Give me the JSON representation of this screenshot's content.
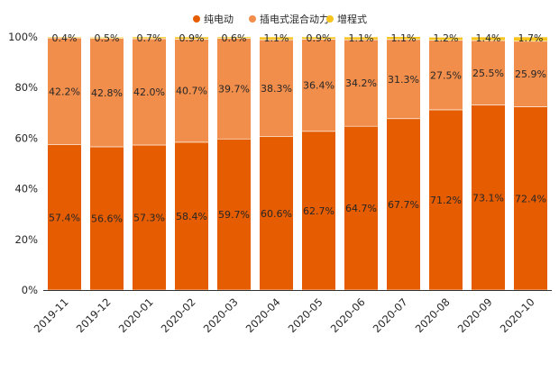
{
  "chart_data": {
    "type": "bar",
    "stacked": true,
    "title": "",
    "xlabel": "",
    "ylabel": "",
    "ylim": [
      0,
      100
    ],
    "yticks": [
      "0%",
      "20%",
      "40%",
      "60%",
      "80%",
      "100%"
    ],
    "ytick_values": [
      0,
      20,
      40,
      60,
      80,
      100
    ],
    "legend_position": "top-right",
    "categories": [
      "2019-11",
      "2019-12",
      "2020-01",
      "2020-02",
      "2020-03",
      "2020-04",
      "2020-05",
      "2020-06",
      "2020-07",
      "2020-08",
      "2020-09",
      "2020-10"
    ],
    "series": [
      {
        "name": "纯电动",
        "color": "#E65C00",
        "values": [
          57.4,
          56.6,
          57.3,
          58.4,
          59.7,
          60.6,
          62.7,
          64.7,
          67.7,
          71.2,
          73.1,
          72.4
        ],
        "labels": [
          "57.4%",
          "56.6%",
          "57.3%",
          "58.4%",
          "59.7%",
          "60.6%",
          "62.7%",
          "64.7%",
          "67.7%",
          "71.2%",
          "73.1%",
          "72.4%"
        ]
      },
      {
        "name": "插电式混合动力",
        "color": "#F28E4B",
        "values": [
          42.2,
          42.8,
          42.0,
          40.7,
          39.7,
          38.3,
          36.4,
          34.2,
          31.3,
          27.5,
          25.5,
          25.9
        ],
        "labels": [
          "42.2%",
          "42.8%",
          "42.0%",
          "40.7%",
          "39.7%",
          "38.3%",
          "36.4%",
          "34.2%",
          "31.3%",
          "27.5%",
          "25.5%",
          "25.9%"
        ]
      },
      {
        "name": "增程式",
        "color": "#F7C41F",
        "values": [
          0.4,
          0.5,
          0.7,
          0.9,
          0.6,
          1.1,
          0.9,
          1.1,
          1.1,
          1.2,
          1.4,
          1.7
        ],
        "labels": [
          "0.4%",
          "0.5%",
          "0.7%",
          "0.9%",
          "0.6%",
          "1.1%",
          "0.9%",
          "1.1%",
          "1.1%",
          "1.2%",
          "1.4%",
          "1.7%"
        ]
      }
    ]
  }
}
